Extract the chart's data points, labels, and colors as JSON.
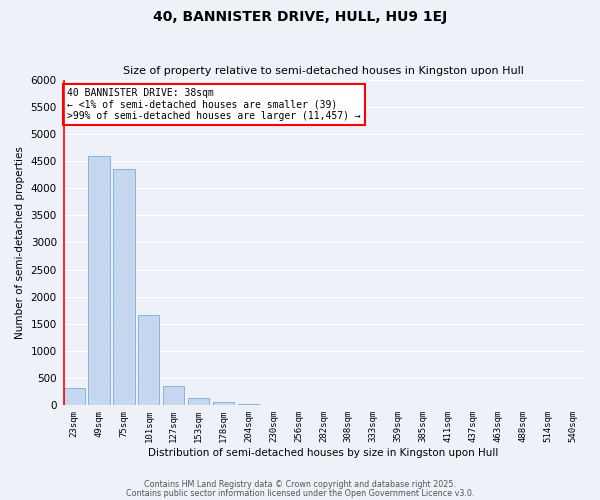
{
  "title": "40, BANNISTER DRIVE, HULL, HU9 1EJ",
  "subtitle": "Size of property relative to semi-detached houses in Kingston upon Hull",
  "xlabel": "Distribution of semi-detached houses by size in Kingston upon Hull",
  "ylabel": "Number of semi-detached properties",
  "bar_color": "#c5d8f0",
  "bar_edge_color": "#7aafd4",
  "background_color": "#eef2f8",
  "grid_color": "#ffffff",
  "categories": [
    "23sqm",
    "49sqm",
    "75sqm",
    "101sqm",
    "127sqm",
    "153sqm",
    "178sqm",
    "204sqm",
    "230sqm",
    "256sqm",
    "282sqm",
    "308sqm",
    "333sqm",
    "359sqm",
    "385sqm",
    "411sqm",
    "437sqm",
    "463sqm",
    "488sqm",
    "514sqm",
    "540sqm"
  ],
  "values": [
    310,
    4600,
    4350,
    1660,
    350,
    130,
    60,
    20,
    0,
    0,
    0,
    0,
    0,
    0,
    0,
    0,
    0,
    0,
    0,
    0,
    0
  ],
  "ylim": [
    0,
    6000
  ],
  "yticks": [
    0,
    500,
    1000,
    1500,
    2000,
    2500,
    3000,
    3500,
    4000,
    4500,
    5000,
    5500,
    6000
  ],
  "annotation_title": "40 BANNISTER DRIVE: 38sqm",
  "annotation_line1": "← <1% of semi-detached houses are smaller (39)",
  "annotation_line2": ">99% of semi-detached houses are larger (11,457) →",
  "footer1": "Contains HM Land Registry data © Crown copyright and database right 2025.",
  "footer2": "Contains public sector information licensed under the Open Government Licence v3.0."
}
